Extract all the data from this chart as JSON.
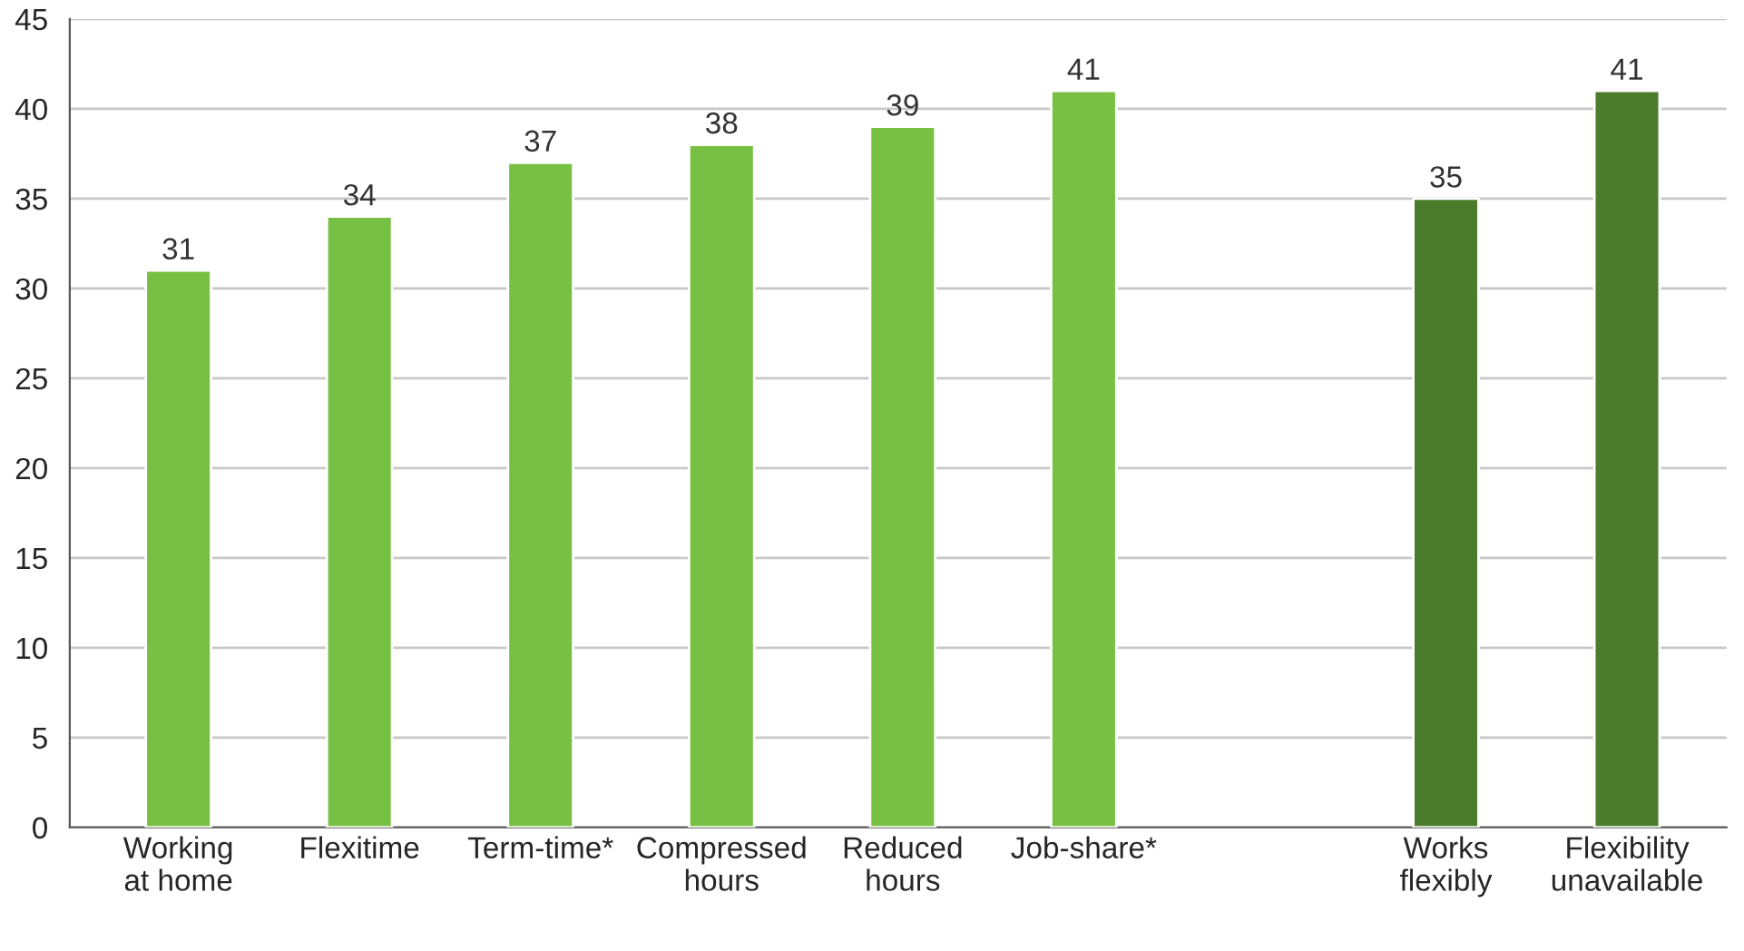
{
  "chart_data": {
    "type": "bar",
    "categories": [
      "Working\nat home",
      "Flexitime",
      "Term-time*",
      "Compressed\nhours",
      "Reduced\nhours",
      "Job-share*",
      null,
      "Works\nflexibly",
      "Flexibility\nunavailable"
    ],
    "values": [
      31,
      34,
      37,
      38,
      39,
      41,
      null,
      35,
      41
    ],
    "colors": [
      "#77c043",
      "#77c043",
      "#77c043",
      "#77c043",
      "#77c043",
      "#77c043",
      "#77c043",
      "#4a7c2c",
      "#4a7c2c"
    ],
    "data_labels": true,
    "ylim": [
      0,
      45
    ],
    "yticks": [
      0,
      5,
      10,
      15,
      20,
      25,
      30,
      35,
      40,
      45
    ],
    "grid": "y"
  }
}
